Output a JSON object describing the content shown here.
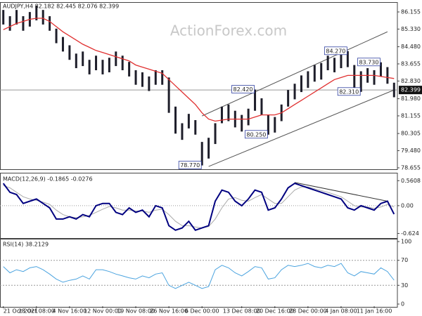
{
  "chart_data": [
    {
      "type": "range-bar",
      "title": "AUDJPY,H4 82.182 82.445 82.076 82.399",
      "watermark": "ActionForex.com",
      "color": "#1e1e2a",
      "xlim": [
        -0.5,
        59.5
      ],
      "xticks": [
        {
          "value": 0,
          "label": "21 Oct 2021"
        },
        {
          "value": 5,
          "label": "28 Oct 08:00"
        },
        {
          "value": 10,
          "label": "4 Nov 16:00"
        },
        {
          "value": 15,
          "label": "12 Nov 00:00"
        },
        {
          "value": 20,
          "label": "19 Nov 08:00"
        },
        {
          "value": 25,
          "label": "26 Nov 16:00"
        },
        {
          "value": 30,
          "label": "6 Dec 00:00"
        },
        {
          "value": 36,
          "label": "13 Dec 08:00"
        },
        {
          "value": 41,
          "label": "20 Dec 16:00"
        },
        {
          "value": 46,
          "label": "28 Dec 00:00"
        },
        {
          "value": 51,
          "label": "4 Jan 08:00"
        },
        {
          "value": 56,
          "label": "11 Jan 16:00"
        }
      ],
      "ylim": [
        78.62,
        86.56
      ],
      "yticks": [
        86.155,
        {
          "value": 85.33,
          "label": "85.330"
        },
        {
          "value": 84.48,
          "label": "84.480"
        },
        83.655,
        {
          "value": 82.83,
          "label": "82.830"
        },
        {
          "value": 81.98,
          "label": "81.980"
        },
        81.155,
        80.305,
        {
          "value": 79.48,
          "label": "79.480"
        },
        78.655
      ],
      "high": [
        86.25,
        85.95,
        86.25,
        85.95,
        86.15,
        86.45,
        86.25,
        85.95,
        85.35,
        84.95,
        84.55,
        84.15,
        84.25,
        83.85,
        84.05,
        83.85,
        83.95,
        84.25,
        84.05,
        83.75,
        83.35,
        83.25,
        83.05,
        83.35,
        83.35,
        83.0,
        81.6,
        80.8,
        81.25,
        80.95,
        79.9,
        80.1,
        80.8,
        81.6,
        81.7,
        81.4,
        81.2,
        81.5,
        82.42,
        82.0,
        81.2,
        81.1,
        81.7,
        82.4,
        82.7,
        83.1,
        83.3,
        83.6,
        83.7,
        84.05,
        83.95,
        84.15,
        84.27,
        83.6,
        83.3,
        83.45,
        83.35,
        83.73,
        83.5,
        82.75
      ],
      "low": [
        85.55,
        85.25,
        85.55,
        85.25,
        85.45,
        85.75,
        85.55,
        85.25,
        84.65,
        84.25,
        83.85,
        83.45,
        83.55,
        83.15,
        83.35,
        83.15,
        83.25,
        83.55,
        83.35,
        83.05,
        82.65,
        82.55,
        82.35,
        82.65,
        82.65,
        81.3,
        80.3,
        80.0,
        80.55,
        80.25,
        78.77,
        79.1,
        79.8,
        80.8,
        80.9,
        80.6,
        80.4,
        80.7,
        81.4,
        81.2,
        80.25,
        80.35,
        80.9,
        81.6,
        81.95,
        82.3,
        82.5,
        82.8,
        82.9,
        83.35,
        83.25,
        83.45,
        83.5,
        82.5,
        82.31,
        82.75,
        82.65,
        83.05,
        82.7,
        82.05
      ],
      "ma": {
        "color": "#e03030",
        "values": [
          85.3,
          85.45,
          85.6,
          85.7,
          85.8,
          85.85,
          85.85,
          85.7,
          85.45,
          85.2,
          85.0,
          84.8,
          84.6,
          84.45,
          84.3,
          84.2,
          84.1,
          84.0,
          83.9,
          83.8,
          83.6,
          83.5,
          83.4,
          83.3,
          83.2,
          82.9,
          82.6,
          82.3,
          82.0,
          81.7,
          81.3,
          81.0,
          80.9,
          80.95,
          81.0,
          81.0,
          81.0,
          81.0,
          81.1,
          81.2,
          81.2,
          81.2,
          81.3,
          81.5,
          81.7,
          81.9,
          82.1,
          82.3,
          82.5,
          82.7,
          82.9,
          83.0,
          83.1,
          83.1,
          83.1,
          83.1,
          83.1,
          83.05,
          83.0,
          82.95
        ]
      },
      "trendlines": [
        {
          "color": "#555555",
          "x": [
            30,
            58
          ],
          "y": [
            81.15,
            85.2
          ]
        },
        {
          "color": "#555555",
          "x": [
            31,
            59
          ],
          "y": [
            78.72,
            82.4
          ]
        }
      ],
      "annotations": [
        {
          "x": 30,
          "value": 78.77,
          "label": "78.770"
        },
        {
          "x": 38,
          "value": 82.42,
          "label": "82.420"
        },
        {
          "x": 40,
          "value": 80.25,
          "label": "80.250"
        },
        {
          "x": 52,
          "value": 84.27,
          "label": "84.270"
        },
        {
          "x": 57,
          "value": 83.73,
          "label": "83.730"
        },
        {
          "x": 54,
          "value": 82.31,
          "label": "82.310"
        }
      ],
      "last_price": 82.399
    },
    {
      "type": "macd",
      "title": "MACD(12,26,9) -0.1865 -0.0276",
      "xlim": [
        -0.5,
        59.5
      ],
      "ylim": [
        -0.68,
        0.66
      ],
      "yticks": [
        0.5608,
        {
          "value": 0,
          "label": "0.00"
        },
        -0.624
      ],
      "zero_line": true,
      "macd": {
        "color": "#000080",
        "values": [
          0.5,
          0.3,
          0.25,
          0.05,
          0.1,
          0.15,
          0.05,
          -0.05,
          -0.3,
          -0.3,
          -0.25,
          -0.3,
          -0.2,
          -0.25,
          0.0,
          0.05,
          0.05,
          -0.15,
          -0.2,
          -0.05,
          -0.15,
          -0.1,
          -0.25,
          0.0,
          -0.05,
          -0.45,
          -0.55,
          -0.5,
          -0.35,
          -0.55,
          -0.5,
          -0.45,
          0.1,
          0.35,
          0.3,
          0.1,
          0.0,
          0.15,
          0.35,
          0.3,
          -0.1,
          -0.05,
          0.15,
          0.4,
          0.5,
          0.45,
          0.4,
          0.35,
          0.3,
          0.25,
          0.2,
          0.15,
          -0.05,
          -0.1,
          0.0,
          -0.05,
          -0.1,
          0.05,
          0.1,
          -0.19
        ]
      },
      "signal": {
        "color": "#aaaaaa",
        "values": [
          0.45,
          0.4,
          0.3,
          0.2,
          0.15,
          0.12,
          0.08,
          0.03,
          -0.1,
          -0.2,
          -0.25,
          -0.27,
          -0.25,
          -0.22,
          -0.15,
          -0.08,
          -0.02,
          -0.05,
          -0.1,
          -0.1,
          -0.12,
          -0.12,
          -0.15,
          -0.1,
          -0.08,
          -0.2,
          -0.35,
          -0.45,
          -0.45,
          -0.48,
          -0.5,
          -0.47,
          -0.3,
          -0.05,
          0.15,
          0.18,
          0.12,
          0.1,
          0.18,
          0.25,
          0.15,
          0.05,
          0.05,
          0.2,
          0.35,
          0.42,
          0.42,
          0.38,
          0.34,
          0.3,
          0.25,
          0.2,
          0.1,
          0.0,
          -0.03,
          -0.03,
          -0.06,
          -0.03,
          0.03,
          -0.03
        ]
      },
      "trendlines": [
        {
          "color": "#333333",
          "x": [
            44,
            58
          ],
          "y": [
            0.52,
            0.1
          ]
        }
      ]
    },
    {
      "type": "rsi",
      "title": "RSI(14) 38.2129",
      "xlim": [
        -0.5,
        59.5
      ],
      "ylim": [
        0,
        100
      ],
      "yticks": [
        100,
        70,
        30,
        0
      ],
      "grid": true,
      "rsi": {
        "color": "#4aa3df",
        "values": [
          60,
          50,
          55,
          52,
          58,
          60,
          55,
          48,
          40,
          35,
          38,
          40,
          45,
          40,
          55,
          55,
          52,
          48,
          45,
          42,
          40,
          45,
          42,
          48,
          50,
          30,
          25,
          30,
          35,
          30,
          25,
          28,
          55,
          62,
          58,
          50,
          45,
          52,
          60,
          58,
          40,
          42,
          55,
          62,
          60,
          62,
          65,
          60,
          58,
          62,
          60,
          65,
          50,
          45,
          52,
          50,
          48,
          58,
          52,
          38.2129
        ]
      }
    }
  ]
}
